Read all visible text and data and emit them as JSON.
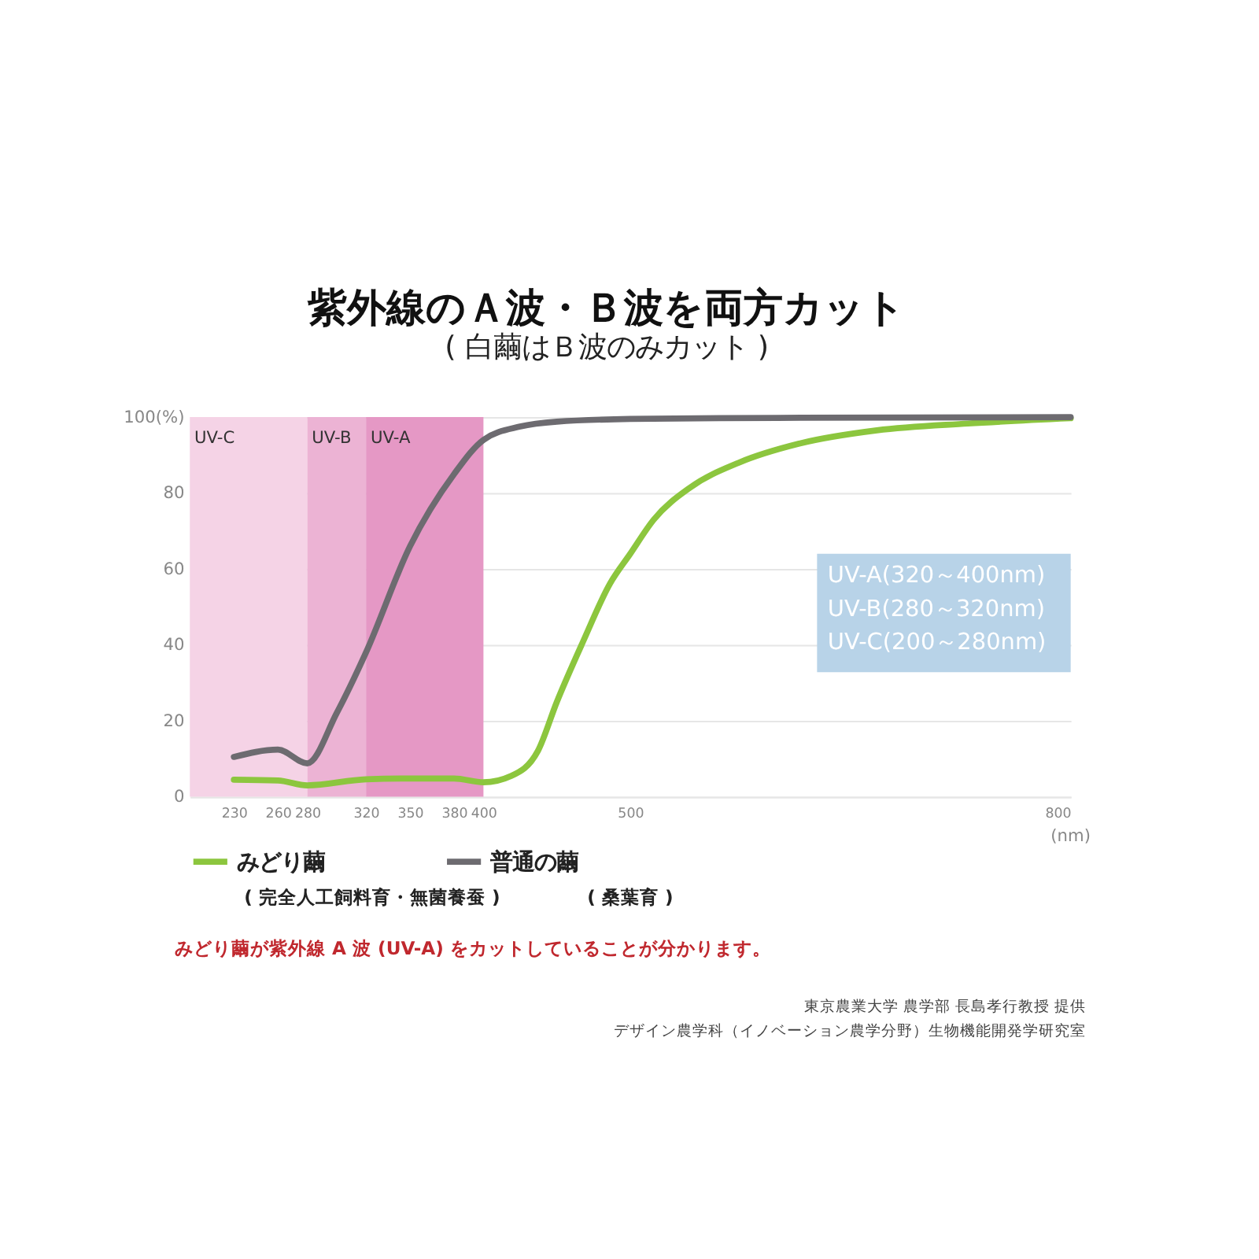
{
  "chart_data": {
    "type": "line",
    "title": "紫外線のＡ波・Ｂ波を両方カット",
    "subtitle": "( 白繭はＢ波のみカット )",
    "xlabel": "(nm)",
    "xlim": [
      200,
      800
    ],
    "xticks": [
      230,
      260,
      280,
      320,
      350,
      380,
      400,
      500,
      800
    ],
    "ylim": [
      0,
      100
    ],
    "yticks": [
      0,
      20,
      40,
      60,
      80,
      {
        "value": 100,
        "label": "100(%)"
      }
    ],
    "grid": "y",
    "legend": "bottom",
    "line_style": "solid",
    "marker": "none",
    "bands": [
      {
        "axis": "x",
        "from": 200,
        "to": 280,
        "label": "UV-C",
        "color": "#f5d3e6"
      },
      {
        "axis": "x",
        "from": 280,
        "to": 320,
        "label": "UV-B",
        "color": "#ecb3d4"
      },
      {
        "axis": "x",
        "from": 320,
        "to": 400,
        "label": "UV-A",
        "color": "#e598c5"
      }
    ],
    "series": [
      {
        "name": "みどり繭",
        "color": "#8cc63e",
        "x": [
          230,
          260,
          280,
          320,
          350,
          380,
          400,
          419,
          437,
          450,
          468,
          486,
          500,
          516,
          541,
          574,
          615,
          668,
          730,
          800
        ],
        "values": [
          4.5,
          4.3,
          3,
          4.6,
          4.8,
          4.8,
          3.8,
          5.5,
          12,
          25,
          41,
          56,
          64,
          73,
          81.5,
          88,
          93,
          96.5,
          98.3,
          99.7
        ]
      },
      {
        "name": "普通の繭",
        "color": "#6d6b70",
        "x": [
          230,
          260,
          280,
          300,
          320,
          350,
          380,
          400,
          425,
          450,
          500,
          600,
          800
        ],
        "values": [
          10.5,
          12.4,
          8.8,
          22,
          38,
          66,
          85,
          94,
          97.5,
          98.8,
          99.5,
          99.8,
          100
        ]
      }
    ],
    "annotations": [
      "UV-A(320～400nm)",
      "UV-B(280～320nm)",
      "UV-C(200～280nm)",
      "( 完全人工飼料育・無菌養蚕 )",
      "( 桑葉育 )",
      "みどり繭が紫外線 A 波 (UV-A) をカットしていることが分かります。",
      "東京農業大学 農学部 長島孝行教授 提供",
      "デザイン農学科（イノベーション農学分野）生物機能開発学研究室"
    ]
  }
}
